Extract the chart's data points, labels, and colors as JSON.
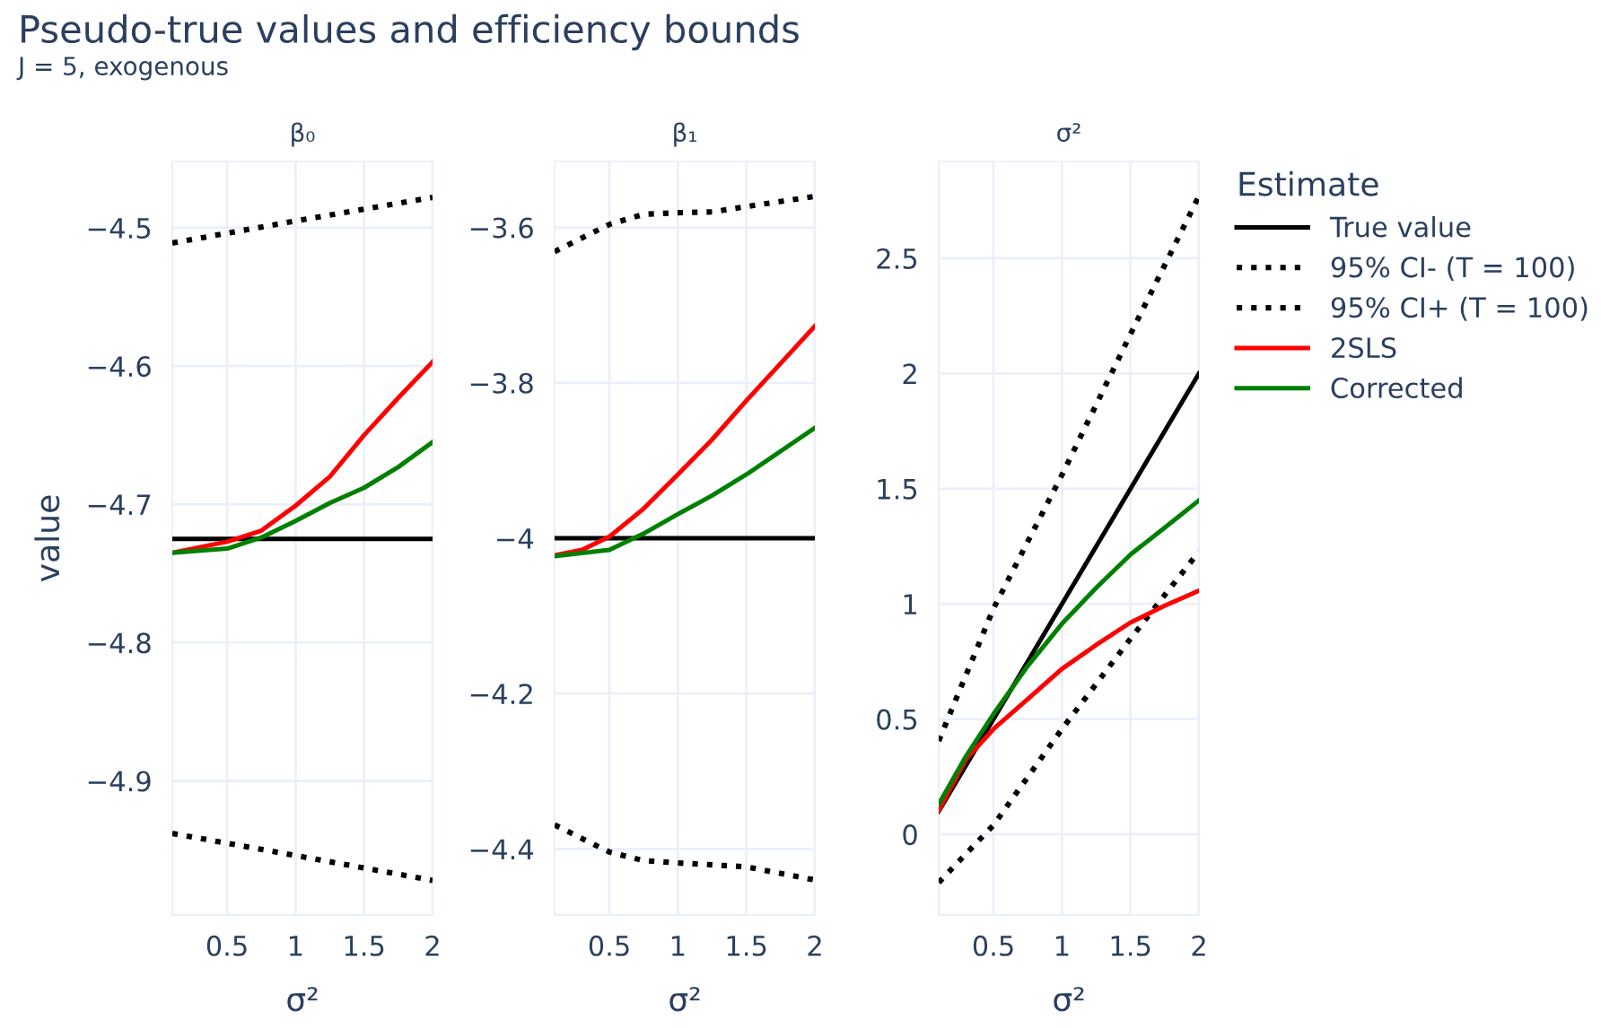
{
  "chart_data": [
    {
      "type": "line",
      "title": "Pseudo-true values and efficiency bounds",
      "subtitle": "J = 5, exogenous",
      "xlabel": "σ²",
      "ylabel": "value",
      "grid": true,
      "xlim": [
        0.1,
        2
      ],
      "xticks": [
        0.5,
        1,
        1.5,
        2
      ],
      "ylim": [
        -4.997,
        -4.452
      ],
      "yticks": [
        {
          "value": -4.9,
          "label": "−4.9"
        },
        {
          "value": -4.8,
          "label": "−4.8"
        },
        {
          "value": -4.7,
          "label": "−4.7"
        },
        {
          "value": -4.6,
          "label": "−4.6"
        },
        {
          "value": -4.5,
          "label": "−4.5"
        }
      ],
      "annotations": [
        "β₀"
      ],
      "series": [
        {
          "color": "#000000",
          "line_style": "solid",
          "x": [
            0.1,
            2
          ],
          "values": [
            -4.725,
            -4.725
          ]
        },
        {
          "color": "#000000",
          "line_style": "dotted",
          "x": [
            0.1,
            1,
            2
          ],
          "values": [
            -4.938,
            -4.954,
            -4.972
          ]
        },
        {
          "color": "#000000",
          "line_style": "dotted",
          "x": [
            0.1,
            1,
            2
          ],
          "values": [
            -4.511,
            -4.495,
            -4.478
          ]
        },
        {
          "color": "#ff0000",
          "line_style": "solid",
          "x": [
            0.1,
            0.5,
            0.75,
            1,
            1.25,
            1.5,
            1.75,
            2
          ],
          "values": [
            -4.735,
            -4.727,
            -4.719,
            -4.701,
            -4.68,
            -4.65,
            -4.623,
            -4.597
          ]
        },
        {
          "color": "#008000",
          "line_style": "solid",
          "x": [
            0.1,
            0.5,
            0.75,
            1,
            1.25,
            1.5,
            1.75,
            2
          ],
          "values": [
            -4.735,
            -4.732,
            -4.724,
            -4.712,
            -4.699,
            -4.688,
            -4.673,
            -4.655
          ]
        }
      ]
    },
    {
      "type": "line",
      "xlabel": "σ²",
      "grid": true,
      "xlim": [
        0.1,
        2
      ],
      "xticks": [
        0.5,
        1,
        1.5,
        2
      ],
      "ylim": [
        -4.485,
        -3.515
      ],
      "yticks": [
        {
          "value": -4.4,
          "label": "−4.4"
        },
        {
          "value": -4.2,
          "label": "−4.2"
        },
        {
          "value": -4,
          "label": "−4"
        },
        {
          "value": -3.8,
          "label": "−3.8"
        },
        {
          "value": -3.6,
          "label": "−3.6"
        }
      ],
      "title": "β₁",
      "series": [
        {
          "color": "#000000",
          "line_style": "solid",
          "x": [
            0.1,
            2
          ],
          "values": [
            -4,
            -4
          ]
        },
        {
          "color": "#000000",
          "line_style": "dotted",
          "x": [
            0.1,
            0.5,
            0.75,
            1,
            1.5,
            2
          ],
          "values": [
            -4.369,
            -4.404,
            -4.415,
            -4.418,
            -4.423,
            -4.44
          ]
        },
        {
          "color": "#000000",
          "line_style": "dotted",
          "x": [
            0.1,
            0.5,
            0.75,
            1,
            1.25,
            1.5,
            2
          ],
          "values": [
            -3.631,
            -3.596,
            -3.583,
            -3.581,
            -3.58,
            -3.573,
            -3.56
          ]
        },
        {
          "color": "#ff0000",
          "line_style": "solid",
          "x": [
            0.1,
            0.3,
            0.5,
            0.75,
            1,
            1.25,
            1.5,
            1.75,
            2
          ],
          "values": [
            -4.022,
            -4.015,
            -3.998,
            -3.962,
            -3.918,
            -3.873,
            -3.823,
            -3.775,
            -3.727
          ]
        },
        {
          "color": "#008000",
          "line_style": "solid",
          "x": [
            0.1,
            0.5,
            0.75,
            1,
            1.25,
            1.5,
            1.75,
            2
          ],
          "values": [
            -4.023,
            -4.015,
            -3.994,
            -3.969,
            -3.945,
            -3.918,
            -3.888,
            -3.858
          ]
        }
      ]
    },
    {
      "type": "line",
      "xlabel": "σ²",
      "grid": true,
      "legend": "top right",
      "xlim": [
        0.1,
        2
      ],
      "xticks": [
        0.5,
        1,
        1.5,
        2
      ],
      "ylim": [
        -0.35,
        2.92
      ],
      "yticks": [
        0,
        0.5,
        1,
        1.5,
        2,
        2.5
      ],
      "title": "σ²",
      "legend_title": "Estimate",
      "series": [
        {
          "name": "True value",
          "color": "#000000",
          "line_style": "solid",
          "x": [
            0.1,
            2
          ],
          "values": [
            0.1,
            2
          ]
        },
        {
          "name": "95% CI- (T = 100)",
          "color": "#000000",
          "line_style": "dotted",
          "x": [
            0.1,
            0.5,
            1,
            1.5,
            2
          ],
          "values": [
            -0.209,
            0.04,
            0.457,
            0.849,
            1.227
          ]
        },
        {
          "name": "95% CI+ (T = 100)",
          "color": "#000000",
          "line_style": "dotted",
          "x": [
            0.1,
            0.5,
            1,
            1.5,
            2
          ],
          "values": [
            0.405,
            0.98,
            1.56,
            2.17,
            2.77
          ]
        },
        {
          "name": "2SLS",
          "color": "#ff0000",
          "line_style": "solid",
          "x": [
            0.1,
            0.3,
            0.5,
            0.75,
            1,
            1.25,
            1.5,
            1.75,
            2
          ],
          "values": [
            0.104,
            0.326,
            0.457,
            0.587,
            0.718,
            0.822,
            0.919,
            0.992,
            1.057
          ]
        },
        {
          "name": "Corrected",
          "color": "#008000",
          "line_style": "solid",
          "x": [
            0.1,
            0.3,
            0.5,
            0.75,
            1,
            1.25,
            1.5,
            1.75,
            2
          ],
          "values": [
            0.13,
            0.34,
            0.522,
            0.731,
            0.914,
            1.07,
            1.214,
            1.331,
            1.449
          ]
        }
      ]
    }
  ]
}
